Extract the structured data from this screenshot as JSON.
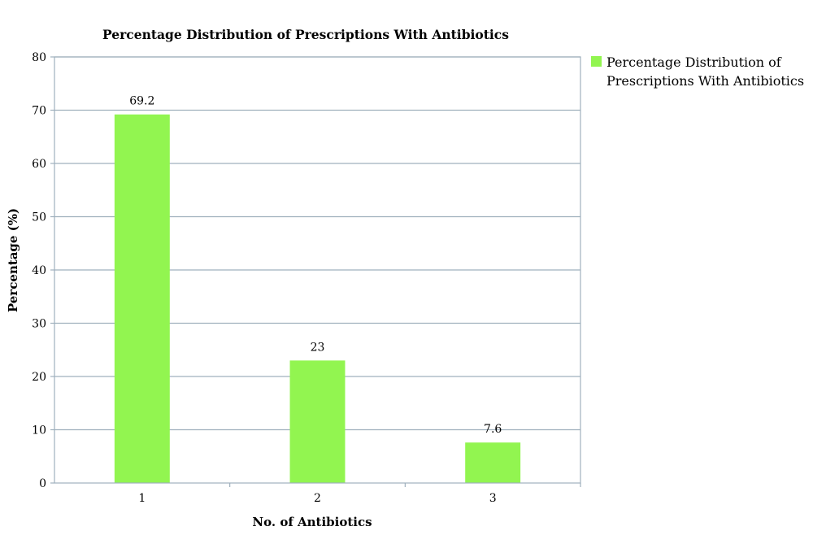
{
  "chart_data": {
    "type": "bar",
    "title": "Percentage Distribution of Prescriptions With Antibiotics",
    "xlabel": "No. of Antibiotics",
    "ylabel": "Percentage (%)",
    "categories": [
      "1",
      "2",
      "3"
    ],
    "series": [
      {
        "name": "Percentage Distribution of Prescriptions With Antibiotics",
        "values": [
          69.2,
          23,
          7.6
        ],
        "color": "#92f550"
      }
    ],
    "data_labels": [
      "69.2",
      "23",
      "7.6"
    ],
    "ylim": [
      0,
      80
    ],
    "yticks": [
      "0",
      "10",
      "20",
      "30",
      "40",
      "50",
      "60",
      "70",
      "80"
    ],
    "grid": true,
    "legend_position": "right",
    "legend_lines": [
      "Percentage Distribution of",
      "Prescriptions With Antibiotics"
    ],
    "colors": {
      "bar": "#92f550",
      "grid": "#9fb0bd",
      "frame": "#9fb0bd"
    }
  }
}
